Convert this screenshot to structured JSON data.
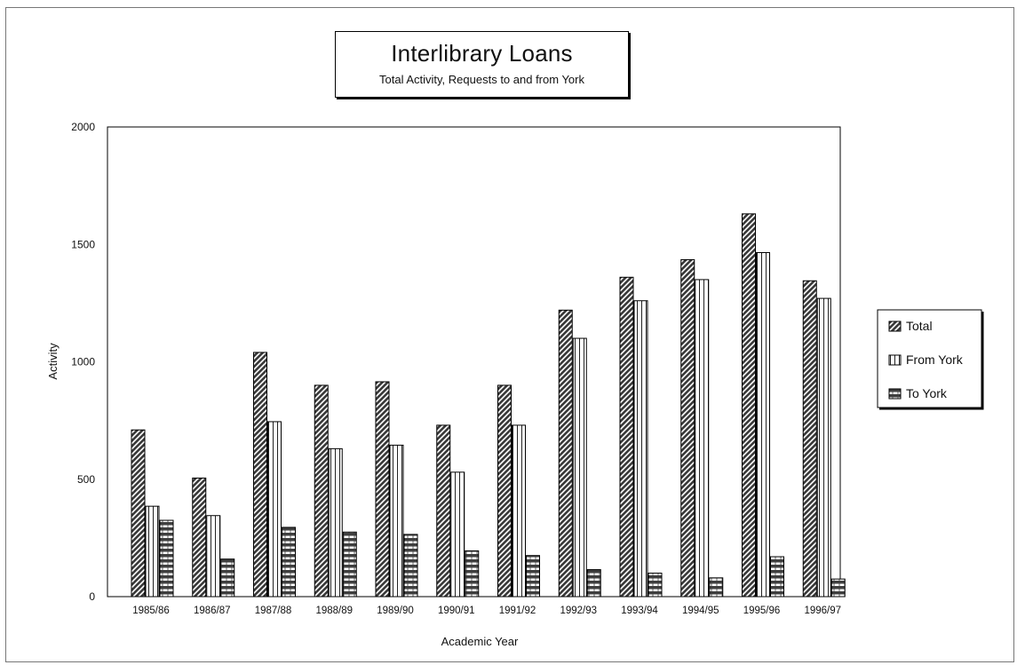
{
  "chart_data": {
    "type": "bar",
    "title": "Interlibrary Loans",
    "subtitle": "Total Activity, Requests to and from York",
    "xlabel": "Academic Year",
    "ylabel": "Activity",
    "ylim": [
      0,
      2000
    ],
    "yticks": [
      0,
      500,
      1000,
      1500,
      2000
    ],
    "grid": false,
    "legend_position": "right",
    "categories": [
      "1985/86",
      "1986/87",
      "1987/88",
      "1988/89",
      "1989/90",
      "1990/91",
      "1991/92",
      "1992/93",
      "1993/94",
      "1994/95",
      "1995/96",
      "1996/97"
    ],
    "series": [
      {
        "name": "Total",
        "pattern": "diagonal",
        "color": "#3a3a3a",
        "values": [
          710,
          505,
          1040,
          900,
          915,
          730,
          900,
          1220,
          1360,
          1435,
          1630,
          1345
        ]
      },
      {
        "name": "From York",
        "pattern": "vertical",
        "color": "#ffffff",
        "values": [
          385,
          345,
          745,
          630,
          645,
          530,
          730,
          1100,
          1260,
          1350,
          1465,
          1270
        ]
      },
      {
        "name": "To York",
        "pattern": "horizontal",
        "color": "#4a4a4a",
        "values": [
          325,
          160,
          295,
          275,
          265,
          195,
          175,
          115,
          100,
          80,
          170,
          75
        ]
      }
    ]
  }
}
